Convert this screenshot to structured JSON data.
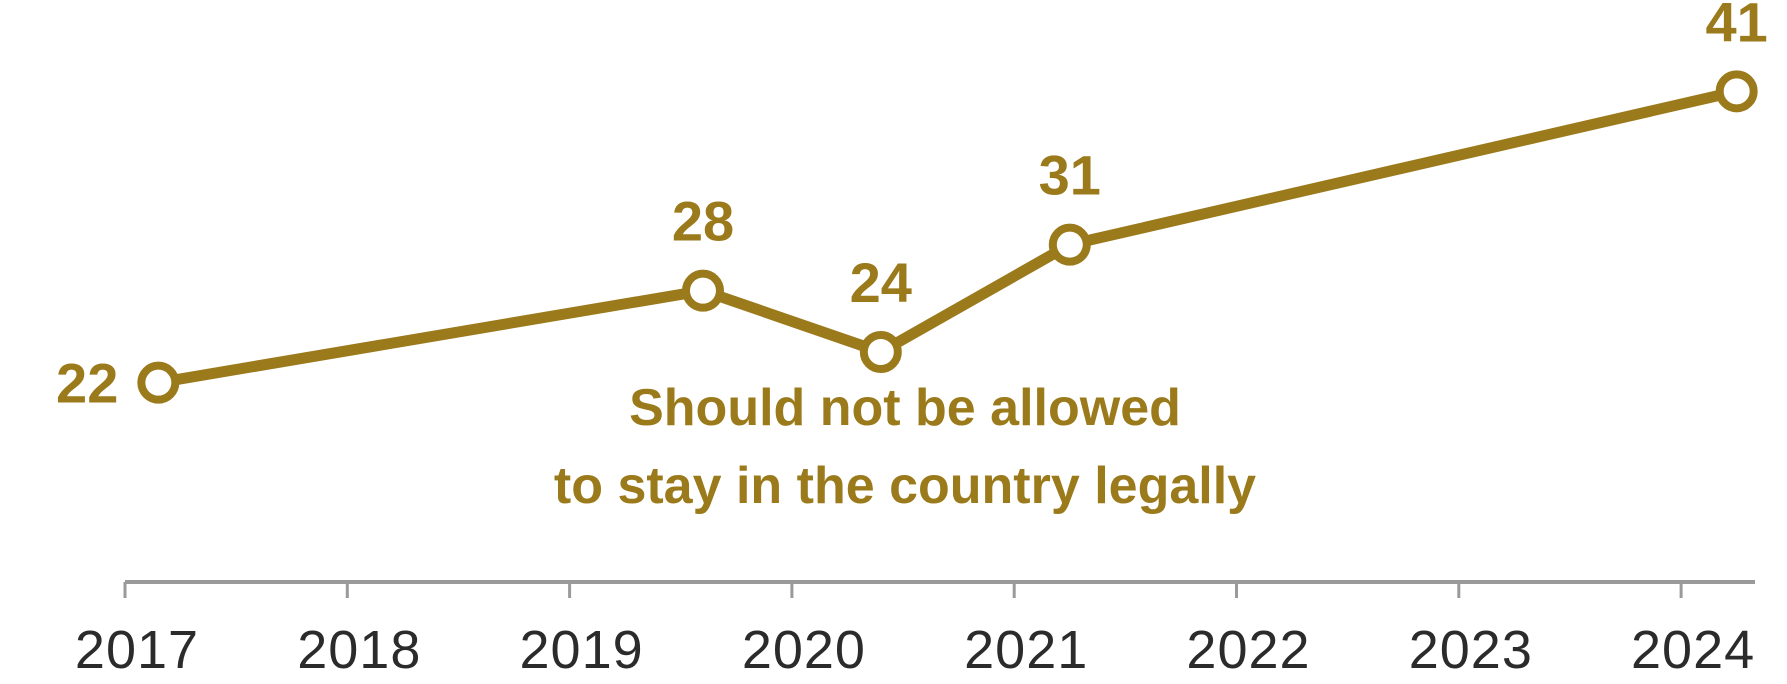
{
  "chart_data": {
    "type": "line",
    "x_axis_ticks": [
      "2017",
      "2018",
      "2019",
      "2020",
      "2021",
      "2022",
      "2023",
      "2024"
    ],
    "series": [
      {
        "points": [
          {
            "x": 2017.15,
            "y": 22,
            "label": "22"
          },
          {
            "x": 2019.6,
            "y": 28,
            "label": "28"
          },
          {
            "x": 2020.4,
            "y": 24,
            "label": "24"
          },
          {
            "x": 2021.25,
            "y": 31,
            "label": "31"
          },
          {
            "x": 2024.25,
            "y": 41,
            "label": "41"
          }
        ]
      }
    ],
    "annotation": [
      "Should not be allowed",
      "to stay in the country legally"
    ],
    "ylim": [
      15,
      45
    ],
    "grid": false,
    "colors": {
      "series": "#9b7a1c",
      "axis": "#9a9a9a",
      "tick_text": "#2b2b2b"
    }
  }
}
